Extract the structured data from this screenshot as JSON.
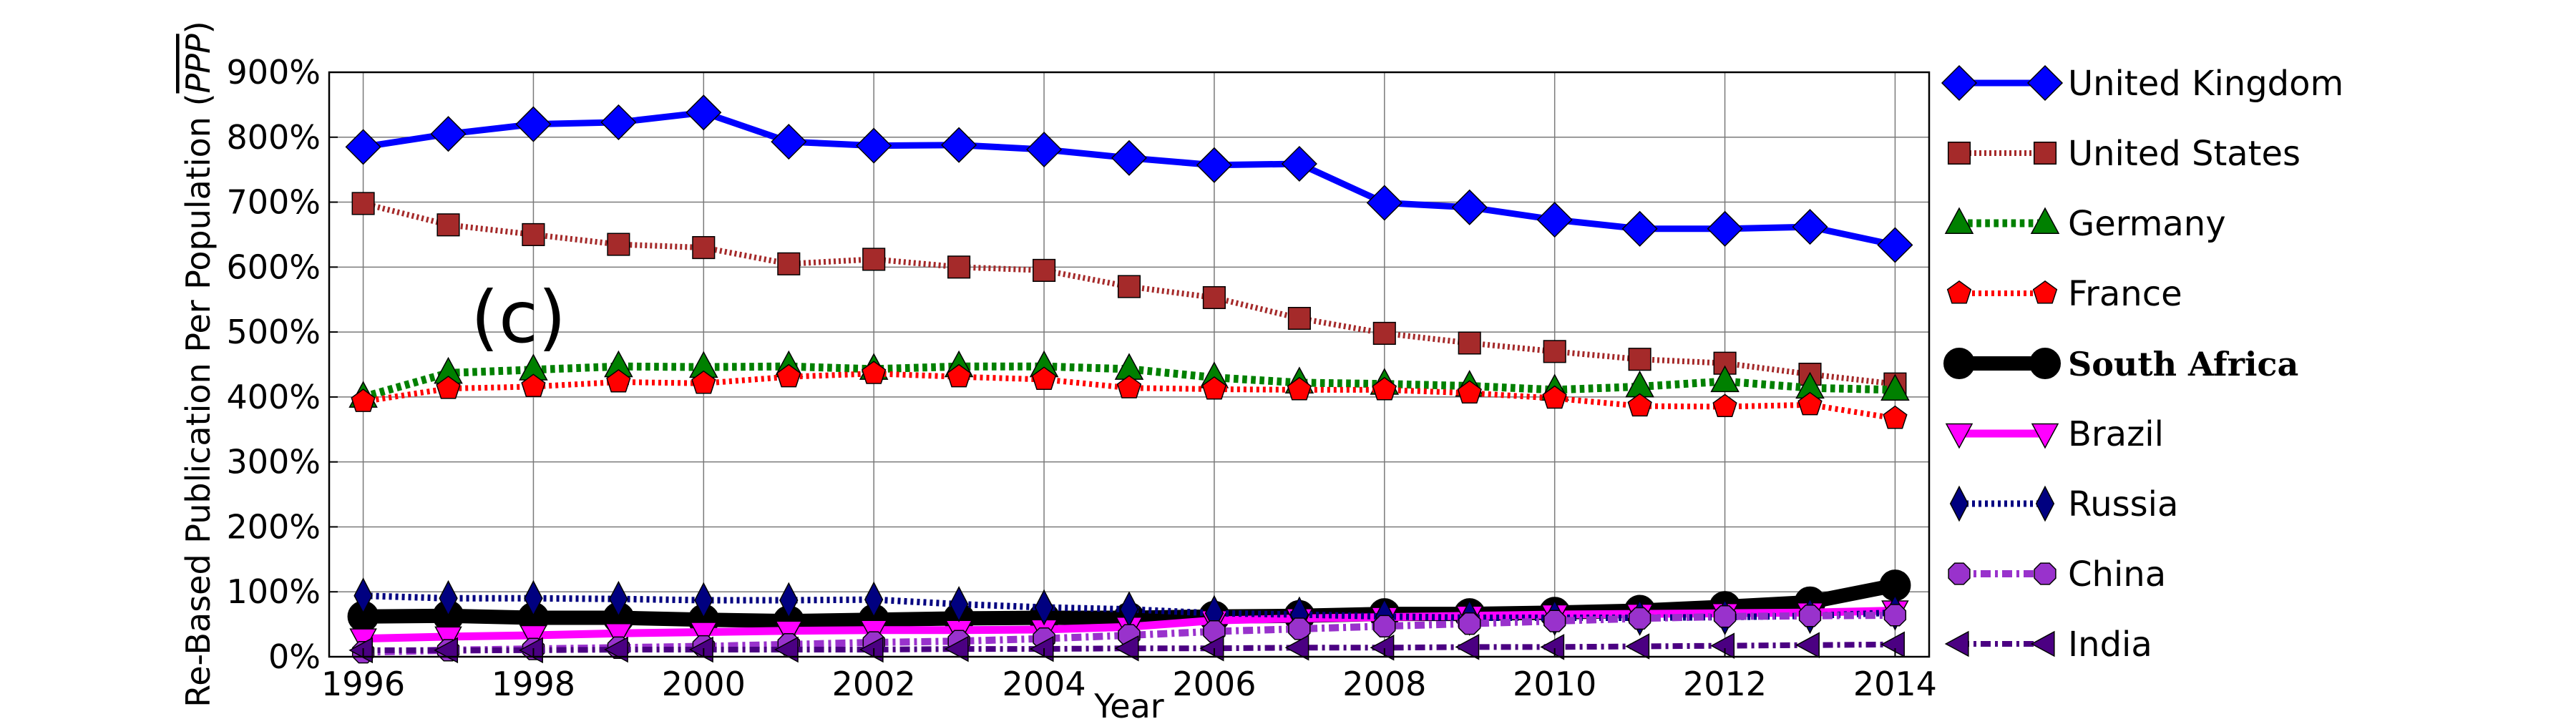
{
  "chart_data": {
    "type": "line",
    "panel_label": "(c)",
    "xlabel": "Year",
    "ylabel": "Re-Based Publication Per Population  (",
    "ylabel_symbol": "PPP",
    "ylabel_close": ")",
    "xlim": [
      1995.6,
      2014.4
    ],
    "ylim": [
      0,
      900
    ],
    "x_ticks": [
      1996,
      1998,
      2000,
      2002,
      2004,
      2006,
      2008,
      2010,
      2012,
      2014
    ],
    "x_tick_labels": [
      "1996",
      "1998",
      "2000",
      "2002",
      "2004",
      "2006",
      "2008",
      "2010",
      "2012",
      "2014"
    ],
    "y_ticks": [
      0,
      100,
      200,
      300,
      400,
      500,
      600,
      700,
      800,
      900
    ],
    "y_tick_labels": [
      "0%",
      "100%",
      "200%",
      "300%",
      "400%",
      "500%",
      "600%",
      "700%",
      "800%",
      "900%"
    ],
    "grid": true,
    "legend_position": "outside-right",
    "x": [
      1996,
      1997,
      1998,
      1999,
      2000,
      2001,
      2002,
      2003,
      2004,
      2005,
      2006,
      2007,
      2008,
      2009,
      2010,
      2011,
      2012,
      2013,
      2014
    ],
    "series": [
      {
        "name": "United Kingdom",
        "color": "#0000ff",
        "marker": "diamond",
        "dash": "solid",
        "width": 9,
        "values": [
          785,
          805,
          820,
          823,
          838,
          793,
          787,
          788,
          781,
          768,
          757,
          759,
          699,
          692,
          673,
          659,
          659,
          662,
          634
        ]
      },
      {
        "name": "United States",
        "color": "#a52a2a",
        "marker": "square",
        "dash": "dotted-thin",
        "width": 8,
        "values": [
          698,
          665,
          650,
          635,
          630,
          605,
          612,
          600,
          595,
          570,
          553,
          521,
          498,
          483,
          470,
          458,
          452,
          435,
          420
        ]
      },
      {
        "name": "Germany",
        "color": "#008000",
        "marker": "triangle-up",
        "dash": "dotted-thick",
        "width": 11,
        "values": [
          400,
          437,
          442,
          447,
          446,
          447,
          443,
          447,
          447,
          443,
          430,
          422,
          420,
          417,
          411,
          416,
          424,
          414,
          411
        ]
      },
      {
        "name": "France",
        "color": "#ff0000",
        "marker": "pentagon",
        "dash": "dotted",
        "width": 8,
        "values": [
          393,
          413,
          416,
          423,
          421,
          431,
          436,
          431,
          427,
          414,
          412,
          411,
          411,
          406,
          398,
          386,
          385,
          388,
          367
        ]
      },
      {
        "name": "South Africa",
        "color": "#000000",
        "marker": "circle",
        "dash": "solid",
        "width": 20,
        "bold_label": true,
        "values": [
          62,
          63,
          60,
          60,
          57,
          55,
          57,
          59,
          60,
          60,
          62,
          63,
          66,
          66,
          68,
          71,
          77,
          84,
          110
        ]
      },
      {
        "name": "Brazil",
        "color": "#ff00ff",
        "marker": "triangle-down",
        "dash": "solid",
        "width": 11,
        "values": [
          28,
          31,
          33,
          36,
          38,
          40,
          41,
          41,
          42,
          46,
          56,
          59,
          61,
          63,
          65,
          66,
          67,
          68,
          71
        ]
      },
      {
        "name": "Russia",
        "color": "#000080",
        "marker": "thin-diamond",
        "dash": "dotted",
        "width": 9,
        "values": [
          94,
          90,
          90,
          89,
          87,
          87,
          88,
          81,
          76,
          73,
          67,
          65,
          62,
          60,
          60,
          60,
          61,
          63,
          68
        ]
      },
      {
        "name": "China",
        "color": "#9932cc",
        "marker": "octagon",
        "dash": "dashdot",
        "width": 10,
        "values": [
          7,
          10,
          12,
          14,
          16,
          19,
          22,
          24,
          28,
          33,
          39,
          43,
          47,
          51,
          55,
          59,
          62,
          63,
          64
        ]
      },
      {
        "name": "India",
        "color": "#4b0082",
        "marker": "triangle-left",
        "dash": "dashdot",
        "width": 8,
        "values": [
          10,
          10,
          10,
          11,
          11,
          11,
          11,
          12,
          12,
          13,
          13,
          14,
          14,
          15,
          15,
          16,
          17,
          18,
          19
        ]
      }
    ]
  }
}
